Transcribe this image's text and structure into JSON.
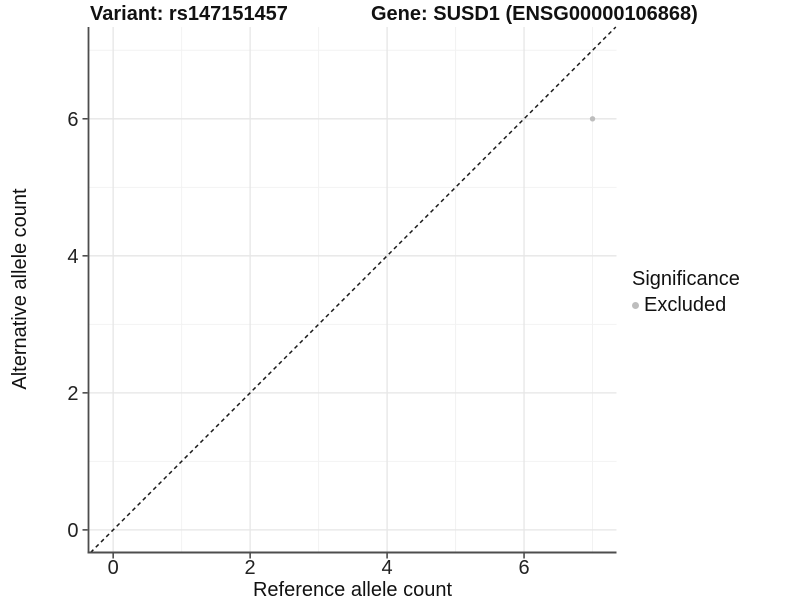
{
  "colors": {
    "background": "#ffffff",
    "grid_major": "#e6e6e6",
    "grid_minor": "#f2f2f2",
    "axis_line": "#4d4d4d",
    "tick_mark": "#333333",
    "tick_text": "#222222",
    "identity_line": "#1a1a1a",
    "point": "#bdbdbd"
  },
  "chart_data": {
    "type": "scatter",
    "title_left": "Variant: rs147151457",
    "title_right": "Gene: SUSD1 (ENSG00000106868)",
    "xlabel": "Reference allele count",
    "ylabel": "Alternative allele count",
    "xlim": [
      -0.36,
      7.35
    ],
    "ylim": [
      -0.33,
      7.34
    ],
    "x_major_ticks": [
      0,
      2,
      4,
      6
    ],
    "y_major_ticks": [
      0,
      2,
      4,
      6
    ],
    "x_minor_ticks": [
      1,
      3,
      5,
      7
    ],
    "y_minor_ticks": [
      1,
      3,
      5,
      7
    ],
    "grid": true,
    "identity_line": {
      "equation": "y = x",
      "style": "dashed"
    },
    "series": [
      {
        "name": "Excluded",
        "color": "#bdbdbd",
        "points": [
          {
            "x": 7,
            "y": 6
          }
        ]
      }
    ],
    "legend": {
      "title": "Significance",
      "position": "right",
      "items": [
        {
          "label": "Excluded",
          "color": "#bdbdbd"
        }
      ]
    }
  }
}
